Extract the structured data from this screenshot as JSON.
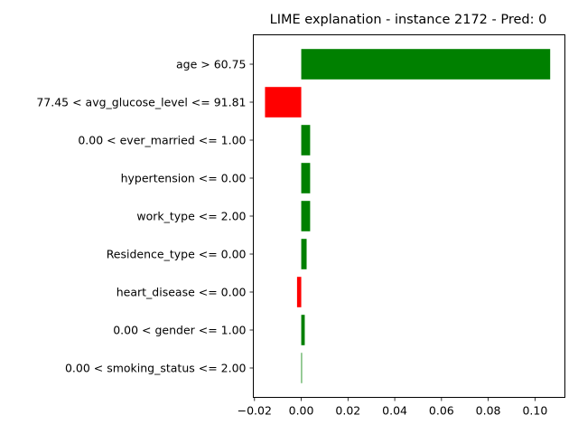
{
  "chart_data": {
    "type": "bar",
    "orientation": "horizontal",
    "title": "LIME explanation - instance 2172 - Pred: 0",
    "xlabel": "",
    "ylabel": "",
    "xlim": [
      -0.0205,
      0.1128
    ],
    "xticks": [
      -0.02,
      0.0,
      0.02,
      0.04,
      0.06,
      0.08,
      0.1
    ],
    "xtick_labels": [
      "−0.02",
      "0.00",
      "0.02",
      "0.04",
      "0.06",
      "0.08",
      "0.10"
    ],
    "grid": false,
    "categories": [
      "age > 60.75",
      "77.45 < avg_glucose_level <= 91.81",
      "0.00 < ever_married <= 1.00",
      "hypertension <= 0.00",
      "work_type <= 2.00",
      "Residence_type <= 0.00",
      "heart_disease <= 0.00",
      "0.00 < gender <= 1.00",
      "0.00 < smoking_status <= 2.00"
    ],
    "values": [
      0.1065,
      -0.0155,
      0.0038,
      0.0038,
      0.0038,
      0.0023,
      -0.0018,
      0.0015,
      0.0003
    ],
    "colors": {
      "positive": "#008000",
      "negative": "#ff0000"
    }
  }
}
